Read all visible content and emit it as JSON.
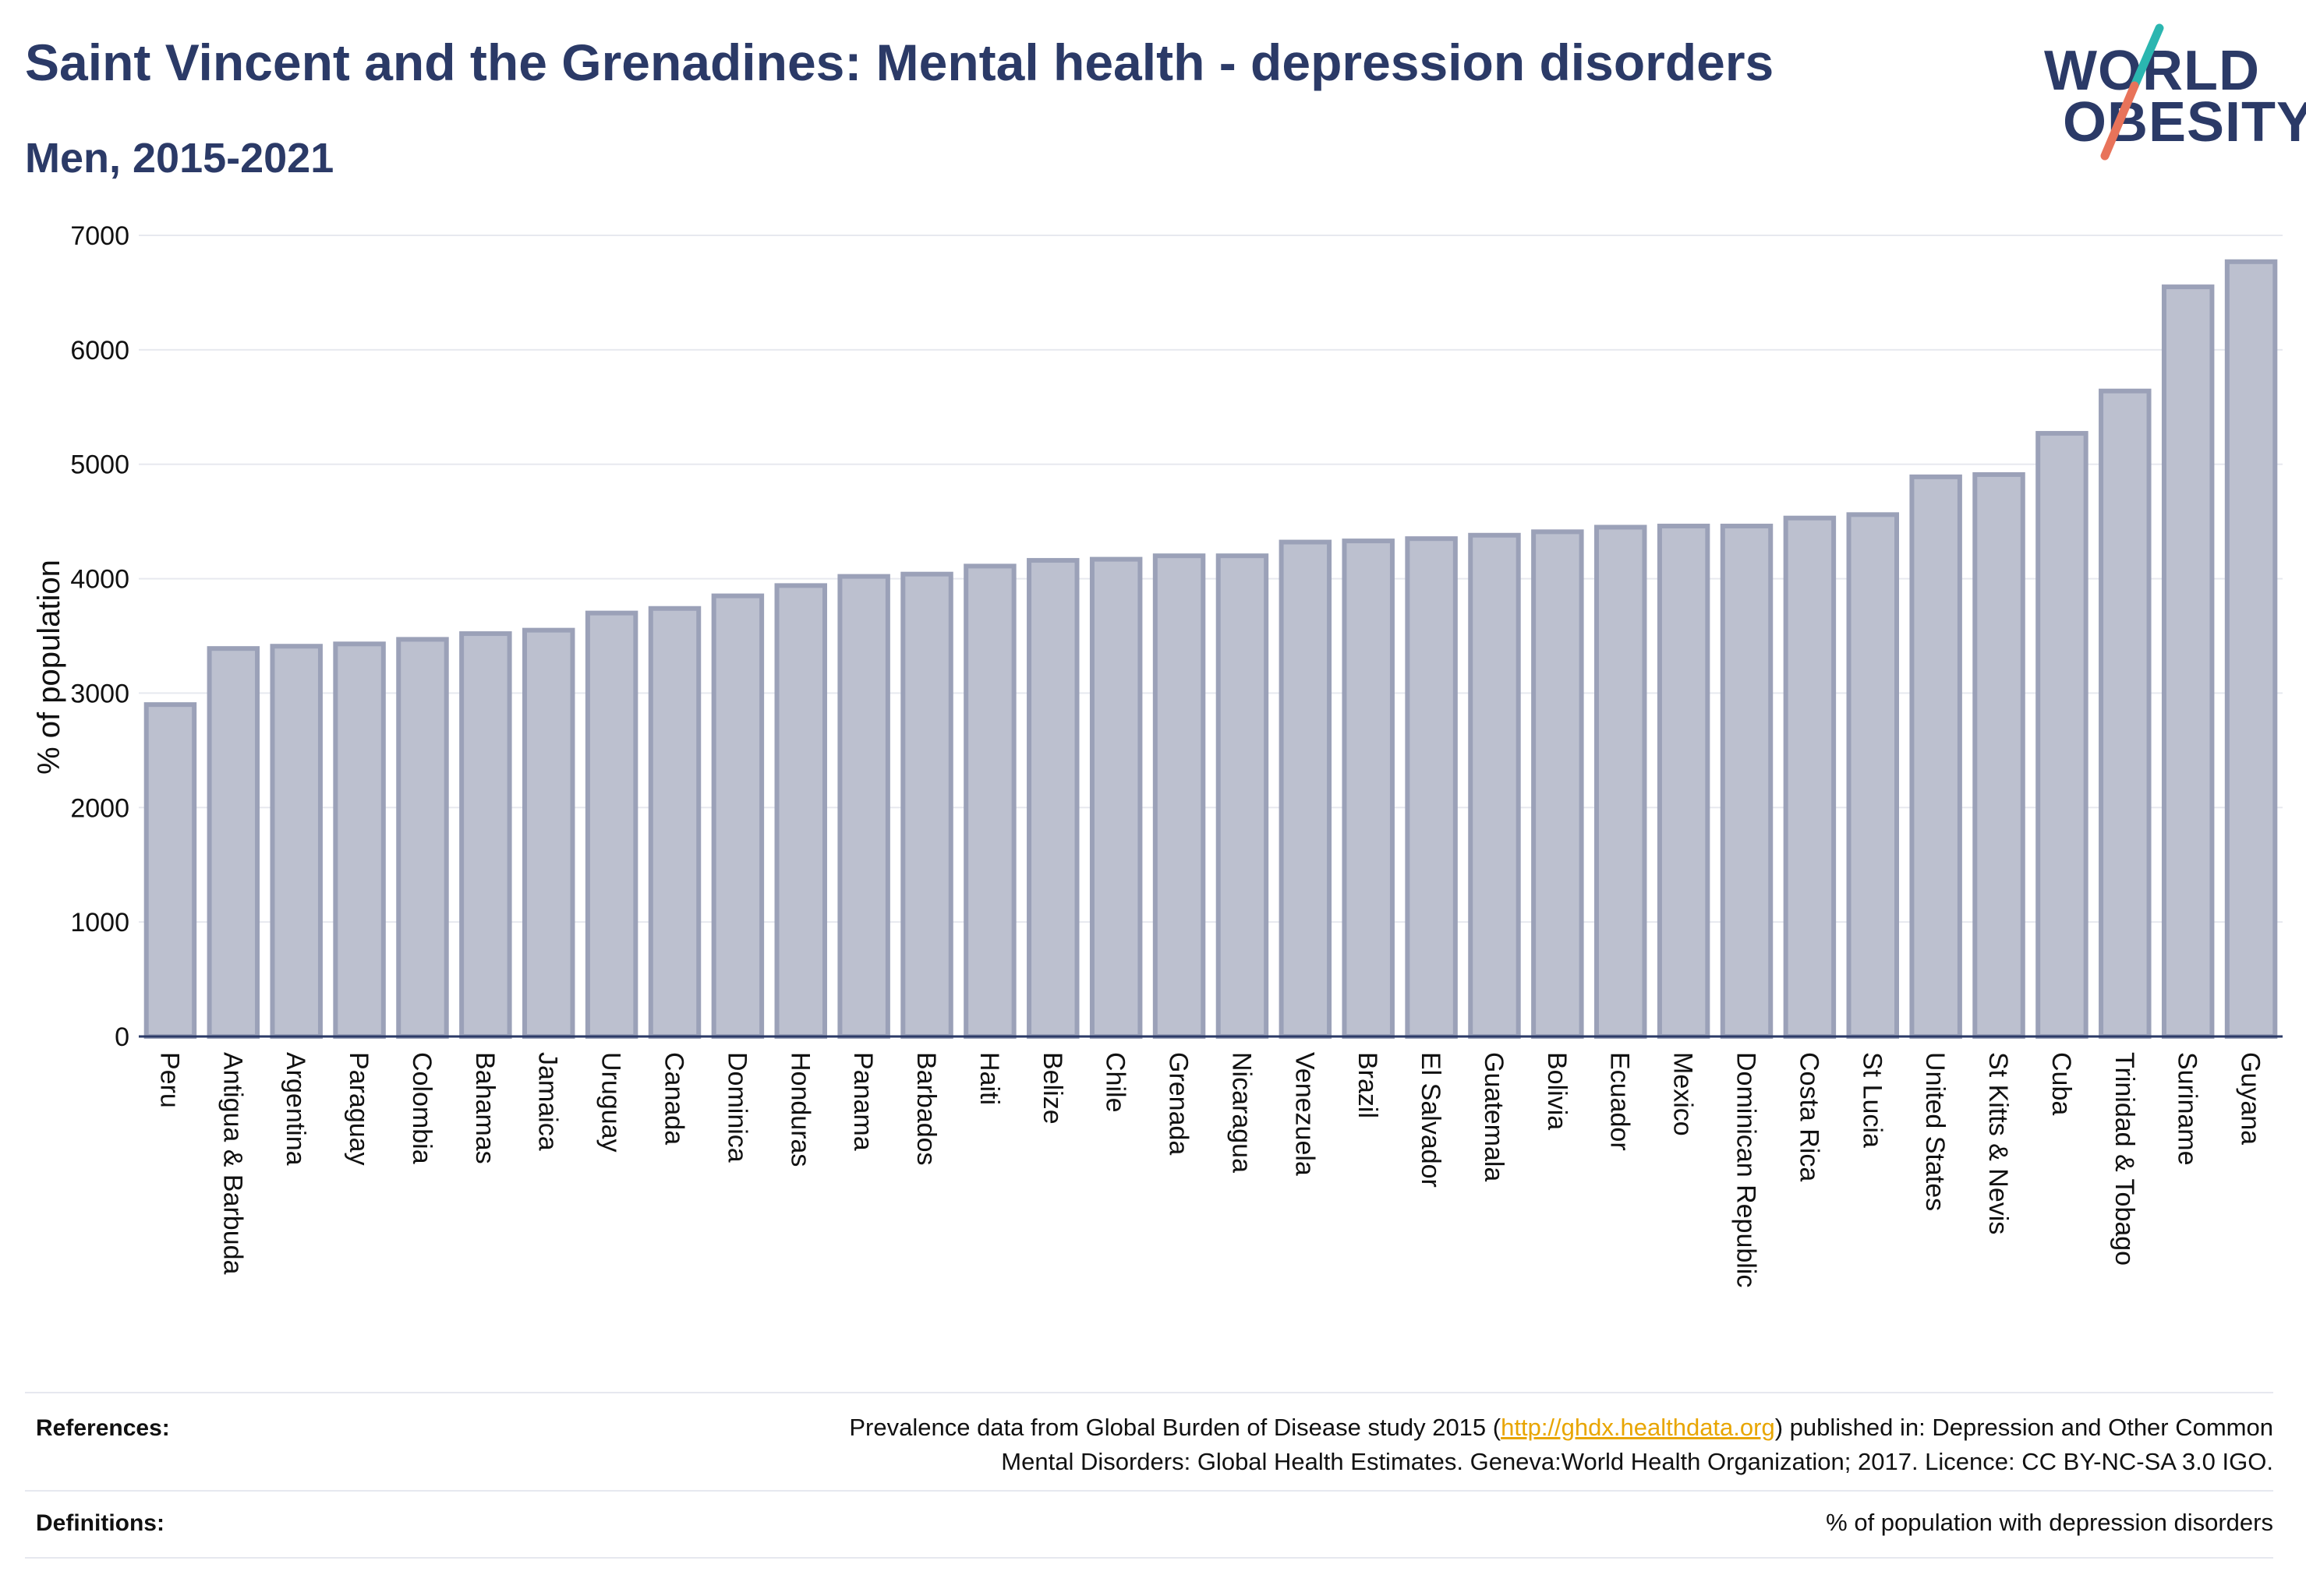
{
  "header": {
    "title": "Saint Vincent and the Grenadines: Mental health - depression disorders",
    "subtitle": "Men, 2015-2021"
  },
  "logo": {
    "line1": "WORLD",
    "line2": "OBESITY"
  },
  "colors": {
    "bar_fill": "#bcc0cf",
    "bar_stroke": "#9ba1b8",
    "title": "#2b3a67",
    "logo_teal": "#2bb6b0",
    "logo_coral": "#e8735a",
    "link": "#e8a500"
  },
  "chart_data": {
    "type": "bar",
    "ylabel": "% of population",
    "ylim": [
      0,
      7000
    ],
    "yticks": [
      0,
      1000,
      2000,
      3000,
      4000,
      5000,
      6000,
      7000
    ],
    "grid": true,
    "categories": [
      "Peru",
      "Antigua & Barbuda",
      "Argentina",
      "Paraguay",
      "Colombia",
      "Bahamas",
      "Jamaica",
      "Uruguay",
      "Canada",
      "Dominica",
      "Honduras",
      "Panama",
      "Barbados",
      "Haiti",
      "Belize",
      "Chile",
      "Grenada",
      "Nicaragua",
      "Venezuela",
      "Brazil",
      "El Salvador",
      "Guatemala",
      "Bolivia",
      "Ecuador",
      "Mexico",
      "Dominican Republic",
      "Costa Rica",
      "St Lucia",
      "United States",
      "St Kitts & Nevis",
      "Cuba",
      "Trinidad & Tobago",
      "Suriname",
      "Guyana"
    ],
    "values": [
      2900,
      3390,
      3410,
      3430,
      3470,
      3520,
      3550,
      3700,
      3740,
      3850,
      3940,
      4020,
      4040,
      4110,
      4160,
      4170,
      4200,
      4200,
      4320,
      4330,
      4350,
      4380,
      4410,
      4450,
      4460,
      4460,
      4530,
      4560,
      4890,
      4910,
      5270,
      5640,
      6550,
      6770
    ]
  },
  "footer": {
    "references_label": "References:",
    "references_text_1": "Prevalence data from Global Burden of Disease study 2015 (",
    "references_link": "http://ghdx.healthdata.org",
    "references_text_2": ") published in: Depression and Other Common",
    "references_text_3": "Mental Disorders: Global Health Estimates. Geneva:World Health Organization; 2017. Licence: CC BY-NC-SA 3.0 IGO.",
    "definitions_label": "Definitions:",
    "definitions_text": "% of population with depression disorders"
  }
}
